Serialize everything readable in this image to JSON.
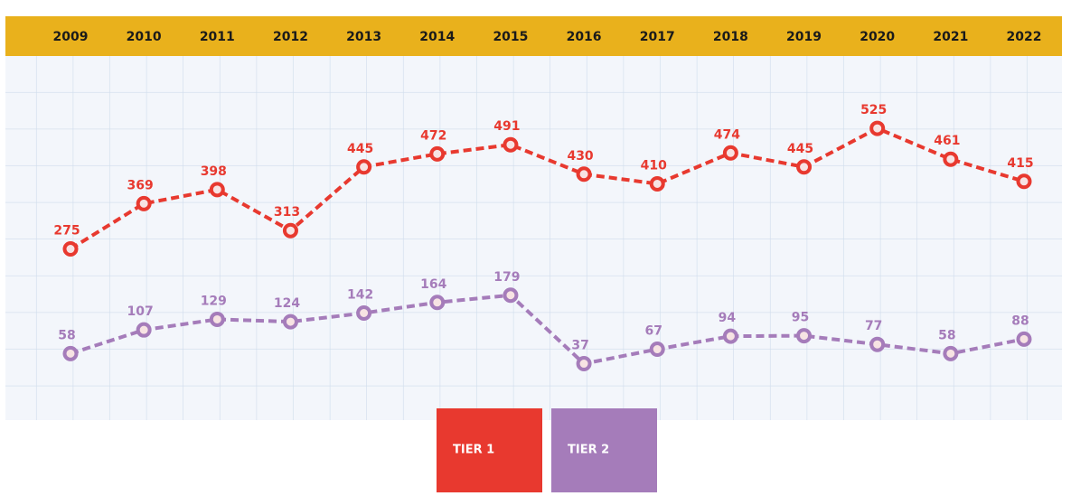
{
  "chart_data": {
    "type": "line",
    "categories": [
      "2009",
      "2010",
      "2011",
      "2012",
      "2013",
      "2014",
      "2015",
      "2016",
      "2017",
      "2018",
      "2019",
      "2020",
      "2021",
      "2022"
    ],
    "series": [
      {
        "name": "TIER 1",
        "color": "#e8392f",
        "values": [
          275,
          369,
          398,
          313,
          445,
          472,
          491,
          430,
          410,
          474,
          445,
          525,
          461,
          415
        ]
      },
      {
        "name": "TIER 2",
        "color": "#a57cba",
        "values": [
          58,
          107,
          129,
          124,
          142,
          164,
          179,
          37,
          67,
          94,
          95,
          77,
          58,
          88
        ]
      }
    ],
    "ylim": [
      -80,
      675
    ]
  }
}
